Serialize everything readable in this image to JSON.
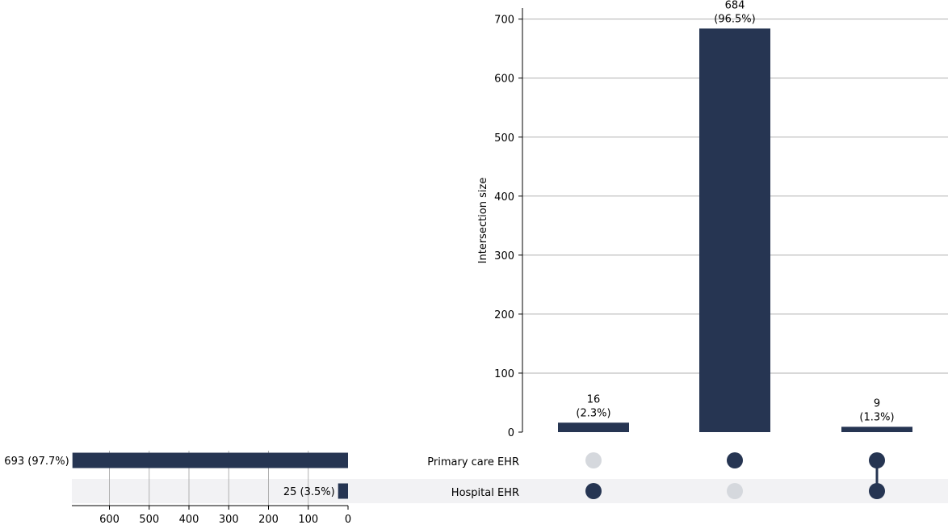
{
  "chart_data": {
    "type": "upset",
    "colors": {
      "bar": "#263552",
      "dot_inactive": "#d5d8dd",
      "stripe": "#f2f2f4",
      "grid": "#b0b0b0"
    },
    "intersections": {
      "ylabel": "Intersection size",
      "ylim": [
        0,
        720
      ],
      "yticks": [
        "0",
        "100",
        "200",
        "300",
        "400",
        "500",
        "600",
        "700"
      ],
      "ytick_values": [
        0,
        100,
        200,
        300,
        400,
        500,
        600,
        700
      ],
      "values": [
        16,
        684,
        9
      ],
      "labels": [
        [
          "16",
          "(2.3%)"
        ],
        [
          "684",
          "(96.5%)"
        ],
        [
          "9",
          "(1.3%)"
        ]
      ],
      "membership": [
        [
          false,
          true
        ],
        [
          true,
          false
        ],
        [
          true,
          true
        ]
      ]
    },
    "sets": {
      "names": [
        "Primary care EHR",
        "Hospital EHR"
      ],
      "values": [
        693,
        25
      ],
      "labels": [
        "693 (97.7%)",
        "25 (3.5%)"
      ],
      "xlim": [
        0,
        700
      ],
      "xticks": [
        "600",
        "500",
        "400",
        "300",
        "200",
        "100",
        "0"
      ],
      "xtick_values": [
        600,
        500,
        400,
        300,
        200,
        100,
        0
      ]
    }
  }
}
